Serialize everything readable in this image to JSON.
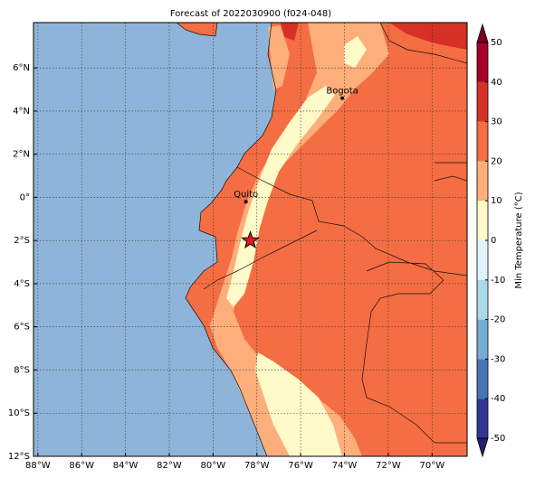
{
  "title": "Forecast of 2022030900 (f024-048)",
  "map": {
    "xlim": [
      -88.2,
      -68.4
    ],
    "ylim": [
      -12,
      8.1
    ],
    "xticks": [
      {
        "value": -88,
        "label": "88°W"
      },
      {
        "value": -86,
        "label": "86°W"
      },
      {
        "value": -84,
        "label": "84°W"
      },
      {
        "value": -82,
        "label": "82°W"
      },
      {
        "value": -80,
        "label": "80°W"
      },
      {
        "value": -78,
        "label": "78°W"
      },
      {
        "value": -76,
        "label": "76°W"
      },
      {
        "value": -74,
        "label": "74°W"
      },
      {
        "value": -72,
        "label": "72°W"
      },
      {
        "value": -70,
        "label": "70°W"
      }
    ],
    "yticks": [
      {
        "value": 6,
        "label": "6°N"
      },
      {
        "value": 4,
        "label": "4°N"
      },
      {
        "value": 2,
        "label": "2°N"
      },
      {
        "value": 0,
        "label": "0°"
      },
      {
        "value": -2,
        "label": "2°S"
      },
      {
        "value": -4,
        "label": "4°S"
      },
      {
        "value": -6,
        "label": "6°S"
      },
      {
        "value": -8,
        "label": "8°S"
      },
      {
        "value": -10,
        "label": "10°S"
      },
      {
        "value": -12,
        "label": "12°S"
      }
    ],
    "cities": [
      {
        "name": "Bogota",
        "lon": -74.1,
        "lat": 4.6
      },
      {
        "name": "Quito",
        "lon": -78.5,
        "lat": -0.2
      }
    ],
    "marker": {
      "lon": -78.3,
      "lat": -2.0,
      "color": "#e31a1c"
    }
  },
  "colorbar": {
    "label": "Min Temperature (°C)",
    "levels": [
      -50,
      -40,
      -30,
      -20,
      -10,
      0,
      10,
      20,
      30,
      40,
      50
    ],
    "colors": [
      "#313695",
      "#4575b4",
      "#74add1",
      "#abd9e9",
      "#e0f3f8",
      "#fffac8",
      "#fdae7a",
      "#f46d43",
      "#d73027",
      "#a50026"
    ],
    "under_color": "#1f1f6b",
    "over_color": "#7a0020",
    "ticks": [
      50,
      40,
      30,
      20,
      10,
      0,
      -10,
      -20,
      -30,
      -40,
      -50
    ]
  }
}
